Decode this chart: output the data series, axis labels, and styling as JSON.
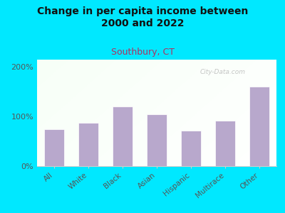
{
  "title": "Change in per capita income between\n2000 and 2022",
  "subtitle": "Southbury, CT",
  "categories": [
    "All",
    "White",
    "Black",
    "Asian",
    "Hispanic",
    "Multirace",
    "Other"
  ],
  "values": [
    75,
    88,
    120,
    105,
    72,
    92,
    160
  ],
  "bar_color": "#b8a8cc",
  "bar_edgecolor": "white",
  "background_outer": "#00e8ff",
  "plot_bg_color_topleft": "#dff0e8",
  "plot_bg_color_bottomright": "#f8f8f8",
  "title_fontsize": 10,
  "subtitle_fontsize": 9,
  "subtitle_color": "#b03060",
  "tick_label_color": "#555555",
  "ytick_labels": [
    "0%",
    "100%",
    "200%"
  ],
  "ytick_values": [
    0,
    100,
    200
  ],
  "ylim": [
    0,
    215
  ],
  "watermark": "City-Data.com"
}
